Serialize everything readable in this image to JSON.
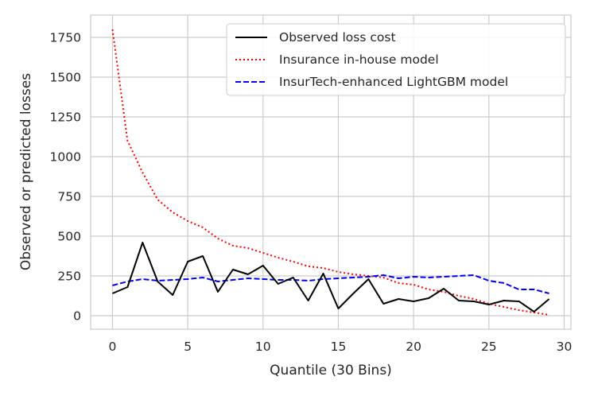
{
  "chart_data": {
    "type": "line",
    "title": "",
    "xlabel": "Quantile (30 Bins)",
    "ylabel": "Observed or predicted losses",
    "xlim": [
      -1.45,
      30.45
    ],
    "ylim": [
      -85,
      1890
    ],
    "xticks": [
      0,
      5,
      10,
      15,
      20,
      25,
      30
    ],
    "yticks": [
      0,
      250,
      500,
      750,
      1000,
      1250,
      1500,
      1750
    ],
    "grid": true,
    "legend_position": "top-right",
    "x": [
      0,
      1,
      2,
      3,
      4,
      5,
      6,
      7,
      8,
      9,
      10,
      11,
      12,
      13,
      14,
      15,
      16,
      17,
      18,
      19,
      20,
      21,
      22,
      23,
      24,
      25,
      26,
      27,
      28,
      29
    ],
    "series": [
      {
        "name": "Observed loss cost",
        "color": "#000000",
        "style": "solid",
        "values": [
          140,
          180,
          460,
          215,
          130,
          340,
          375,
          150,
          290,
          260,
          315,
          200,
          240,
          95,
          265,
          45,
          140,
          230,
          75,
          105,
          90,
          110,
          170,
          95,
          90,
          70,
          95,
          90,
          25,
          105
        ]
      },
      {
        "name": "Insurance in-house model",
        "color": "#ff0000",
        "style": "dotted",
        "values": [
          1800,
          1100,
          900,
          730,
          650,
          595,
          555,
          485,
          440,
          425,
          395,
          365,
          340,
          310,
          300,
          275,
          260,
          250,
          240,
          205,
          195,
          165,
          150,
          125,
          105,
          75,
          55,
          35,
          20,
          5
        ]
      },
      {
        "name": "InsurTech-enhanced LightGBM model",
        "color": "#0000ff",
        "style": "dashed",
        "values": [
          190,
          215,
          230,
          220,
          225,
          230,
          240,
          215,
          225,
          235,
          230,
          225,
          225,
          220,
          230,
          235,
          240,
          245,
          255,
          235,
          245,
          240,
          245,
          250,
          255,
          220,
          205,
          165,
          165,
          140
        ]
      }
    ]
  }
}
